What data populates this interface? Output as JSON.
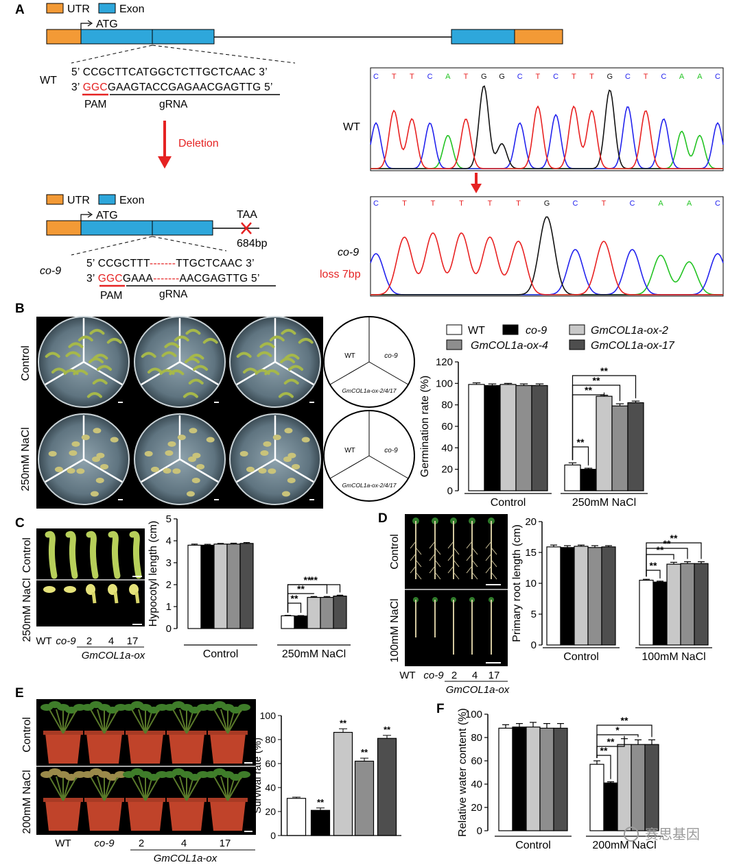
{
  "panels": {
    "A": "A",
    "B": "B",
    "C": "C",
    "D": "D",
    "E": "E",
    "F": "F"
  },
  "legendA": {
    "utr": "UTR",
    "exon": "Exon"
  },
  "gene": {
    "atg": "ATG",
    "taa": "TAA",
    "size": "684bp",
    "deletion": "Deletion"
  },
  "wt": {
    "label": "WT",
    "top": "5’  CCGCTTCATGGCTCTTGCTCAAC  3’",
    "bot_prefix": "3’ ",
    "bot_pam": "GGC",
    "bot_rest": "GAAGTACCGAGAACGAGTTG  5’",
    "pam": "PAM",
    "grna": "gRNA"
  },
  "co9": {
    "label": "co-9",
    "top_a": "5’ CCGCTTT",
    "top_del": "-------",
    "top_b": "TTGCTCAAC 3’",
    "bot_a": "3’ ",
    "bot_pam": "GGC",
    "bot_mid": "GAAA",
    "bot_del": "-------",
    "bot_b": "AACGAGTTG 5’",
    "pam": "PAM",
    "grna": "gRNA"
  },
  "chrom": {
    "wt_label": "WT",
    "co9_label": "co-9",
    "loss": "loss 7bp",
    "wt_bases": [
      "C",
      "T",
      "T",
      "C",
      "A",
      "T",
      "G",
      "G",
      "C",
      "T",
      "C",
      "T",
      "T",
      "G",
      "C",
      "T",
      "C",
      "A",
      "A",
      "C"
    ],
    "co9_bases": [
      "C",
      "T",
      "T",
      "T",
      "T",
      "T",
      "G",
      "C",
      "T",
      "C",
      "A",
      "A",
      "C"
    ],
    "colors": {
      "A": "#22c322",
      "C": "#2222ee",
      "G": "#111111",
      "T": "#e82020"
    }
  },
  "legendB": {
    "wt": "WT",
    "co9": "co-9",
    "ox2": "GmCOL1a-ox-2",
    "ox4": "GmCOL1a-ox-4",
    "ox17": "GmCOL1a-ox-17"
  },
  "plateB": {
    "control": "Control",
    "salt": "250mM NaCl",
    "seg_wt": "WT",
    "seg_co9": "co-9",
    "seg_ox": "GmCOL1a-ox-2/4/17"
  },
  "plateC": {
    "control": "Control",
    "salt": "250mM NaCl",
    "xlabels": [
      "WT",
      "co-9",
      "2",
      "4",
      "17"
    ],
    "group": "GmCOL1a-ox"
  },
  "plateD": {
    "control": "Control",
    "salt": "100mM NaCl",
    "xlabels": [
      "WT",
      "co-9",
      "2",
      "4",
      "17"
    ],
    "group": "GmCOL1a-ox"
  },
  "plateE": {
    "control": "Control",
    "salt": "200mM NaCl",
    "xlabels": [
      "WT",
      "co-9",
      "2",
      "4",
      "17"
    ],
    "group": "GmCOL1a-ox"
  },
  "colors": {
    "wt": "#ffffff",
    "co9": "#000000",
    "ox2": "#c8c8c8",
    "ox4": "#8e8e8e",
    "ox17": "#4e4e4e",
    "red": "#e52222",
    "orange": "#f39a36",
    "blue": "#2ea7db"
  },
  "watermark": "赛思基因",
  "chart_data": [
    {
      "id": "B",
      "type": "bar",
      "ylabel": "Germination rate (%)",
      "ylim": [
        0,
        120
      ],
      "yticks": [
        0,
        20,
        40,
        60,
        80,
        100,
        120
      ],
      "groups": [
        "Control",
        "250mM NaCl"
      ],
      "series": [
        {
          "name": "WT",
          "values": [
            99,
            24
          ]
        },
        {
          "name": "co-9",
          "values": [
            98,
            20
          ]
        },
        {
          "name": "GmCOL1a-ox-2",
          "values": [
            99,
            88
          ]
        },
        {
          "name": "GmCOL1a-ox-4",
          "values": [
            98,
            79
          ]
        },
        {
          "name": "GmCOL1a-ox-17",
          "values": [
            98,
            82
          ]
        }
      ],
      "errors": [
        [
          1.5,
          2
        ],
        [
          1.5,
          1
        ],
        [
          1,
          1
        ],
        [
          1.5,
          2
        ],
        [
          1.5,
          1.5
        ]
      ],
      "sig": "**"
    },
    {
      "id": "C",
      "type": "bar",
      "ylabel": "Hypocotyl length (cm)",
      "ylim": [
        0,
        5
      ],
      "yticks": [
        0,
        1,
        2,
        3,
        4,
        5
      ],
      "groups": [
        "Control",
        "250mM NaCl"
      ],
      "series": [
        {
          "name": "WT",
          "values": [
            3.8,
            0.58
          ]
        },
        {
          "name": "co-9",
          "values": [
            3.8,
            0.57
          ]
        },
        {
          "name": "GmCOL1a-ox-2",
          "values": [
            3.85,
            1.42
          ]
        },
        {
          "name": "GmCOL1a-ox-4",
          "values": [
            3.85,
            1.42
          ]
        },
        {
          "name": "GmCOL1a-ox-17",
          "values": [
            3.88,
            1.48
          ]
        }
      ],
      "errors": [
        [
          0.05,
          0.02
        ],
        [
          0.04,
          0.02
        ],
        [
          0.03,
          0.04
        ],
        [
          0.04,
          0.04
        ],
        [
          0.04,
          0.04
        ]
      ],
      "sig": "**"
    },
    {
      "id": "D",
      "type": "bar",
      "ylabel": "Primary root length (cm)",
      "ylim": [
        0,
        20
      ],
      "yticks": [
        0,
        5,
        10,
        15,
        20
      ],
      "groups": [
        "Control",
        "100mM NaCl"
      ],
      "series": [
        {
          "name": "WT",
          "values": [
            15.9,
            10.5
          ]
        },
        {
          "name": "co-9",
          "values": [
            15.8,
            10.2
          ]
        },
        {
          "name": "GmCOL1a-ox-2",
          "values": [
            16.0,
            13.1
          ]
        },
        {
          "name": "GmCOL1a-ox-4",
          "values": [
            15.8,
            13.2
          ]
        },
        {
          "name": "GmCOL1a-ox-17",
          "values": [
            15.9,
            13.2
          ]
        }
      ],
      "errors": [
        [
          0.3,
          0.15
        ],
        [
          0.3,
          0.15
        ],
        [
          0.2,
          0.3
        ],
        [
          0.3,
          0.3
        ],
        [
          0.2,
          0.3
        ]
      ],
      "sig": "**"
    },
    {
      "id": "E",
      "type": "bar",
      "ylabel": "Survival rate (%)",
      "ylim": [
        0,
        100
      ],
      "yticks": [
        0,
        20,
        40,
        60,
        80,
        100
      ],
      "categories": [
        "WT",
        "co-9",
        "GmCOL1a-ox-2",
        "GmCOL1a-ox-4",
        "GmCOL1a-ox-17"
      ],
      "values": [
        31,
        21,
        86,
        62,
        81
      ],
      "errors": [
        1,
        2,
        3,
        2.5,
        2.5
      ],
      "annotations": [
        "",
        "**",
        "**",
        "**",
        "**"
      ]
    },
    {
      "id": "F",
      "type": "bar",
      "ylabel": "Relative water content (%)",
      "ylim": [
        0,
        100
      ],
      "yticks": [
        0,
        20,
        40,
        60,
        80,
        100
      ],
      "groups": [
        "Control",
        "200mM NaCl"
      ],
      "series": [
        {
          "name": "WT",
          "values": [
            88,
            57
          ]
        },
        {
          "name": "co-9",
          "values": [
            89,
            41
          ]
        },
        {
          "name": "GmCOL1a-ox-2",
          "values": [
            89,
            74
          ]
        },
        {
          "name": "GmCOL1a-ox-4",
          "values": [
            88,
            74
          ]
        },
        {
          "name": "GmCOL1a-ox-17",
          "values": [
            88,
            74
          ]
        }
      ],
      "errors": [
        [
          3,
          3
        ],
        [
          3,
          1
        ],
        [
          4,
          5
        ],
        [
          4,
          4
        ],
        [
          4,
          4
        ]
      ],
      "sigs": [
        "**",
        "**",
        "*",
        "**"
      ]
    }
  ]
}
